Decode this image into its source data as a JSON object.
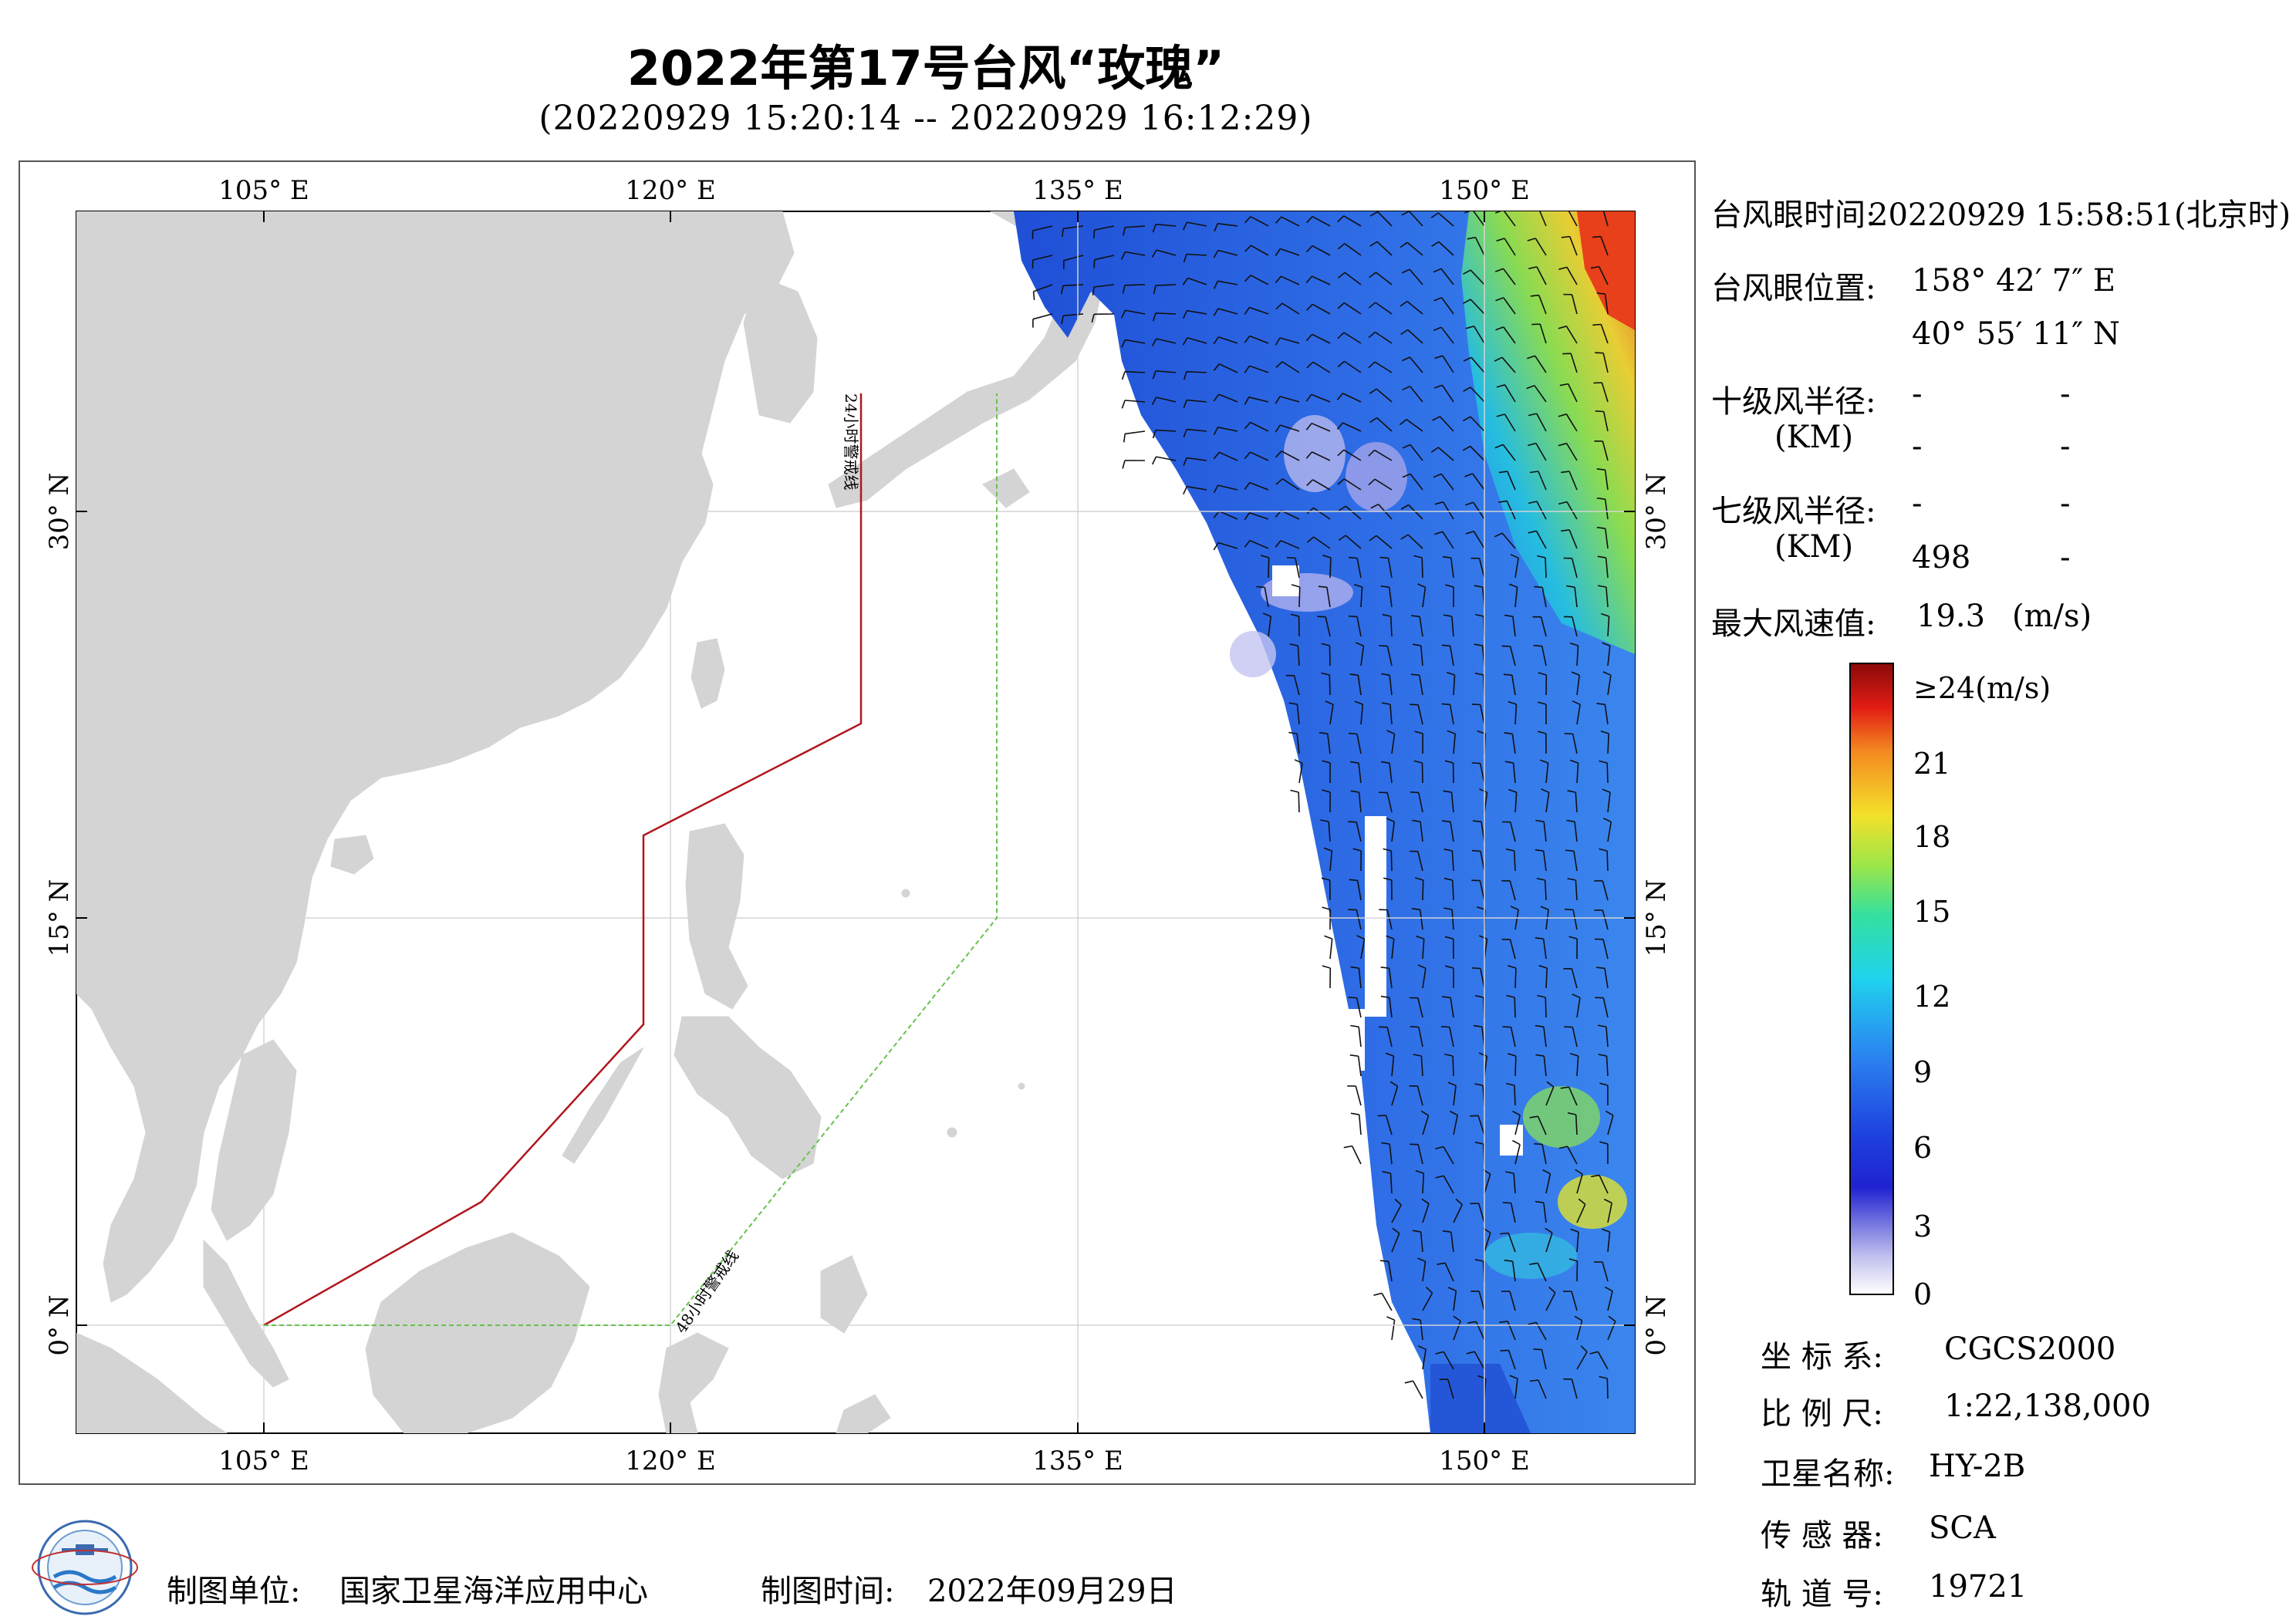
{
  "header": {
    "title": "2022年第17号台风“玫瑰”",
    "subtitle": "(20220929 15:20:14 -- 20220929 16:12:29)"
  },
  "map": {
    "lon_ticks": [
      "105° E",
      "120° E",
      "135° E",
      "150° E"
    ],
    "lat_ticks": [
      "30° N",
      "15° N",
      "0° N"
    ],
    "warning_24h_label": "24小时警戒线",
    "warning_48h_label": "48小时警戒线",
    "colors": {
      "land": "#d4d4d4",
      "ocean": "#ffffff",
      "line_24h": "#b0171f",
      "line_48h": "#66c24c"
    }
  },
  "info": {
    "eye_time_label": "台风眼时间:",
    "eye_time_value": "20220929 15:58:51(北京时)",
    "eye_pos_label": "台风眼位置:",
    "eye_lon": "158° 42′ 7″ E",
    "eye_lat": "40° 55′ 11″ N",
    "r10_label": "十级风半径:",
    "r10_unit": "(KM)",
    "r10_v1": "-",
    "r10_v2": "-",
    "r10_v3": "-",
    "r10_v4": "-",
    "r7_label": "七级风半径:",
    "r7_unit": "(KM)",
    "r7_v1": "-",
    "r7_v2": "-",
    "r7_v3": "498",
    "r7_v4": "-",
    "max_label": "最大风速值:",
    "max_value": "19.3",
    "max_unit": "(m/s)"
  },
  "colorbar": {
    "labels": [
      "≥24(m/s)",
      "21",
      "18",
      "15",
      "12",
      "9",
      "6",
      "3",
      "0"
    ]
  },
  "meta": {
    "crs_label": "坐 标 系:",
    "crs_value": "CGCS2000",
    "scale_label": "比 例 尺:",
    "scale_value": "1:22,138,000",
    "sat_label": "卫星名称:",
    "sat_value": "HY-2B",
    "sensor_label": "传 感 器:",
    "sensor_value": "SCA",
    "orbit_label": "轨 道 号:",
    "orbit_value": "19721"
  },
  "footer": {
    "maker_label": "制图单位:",
    "maker_value": "国家卫星海洋应用中心",
    "date_label": "制图时间:",
    "date_value": "2022年09月29日"
  }
}
